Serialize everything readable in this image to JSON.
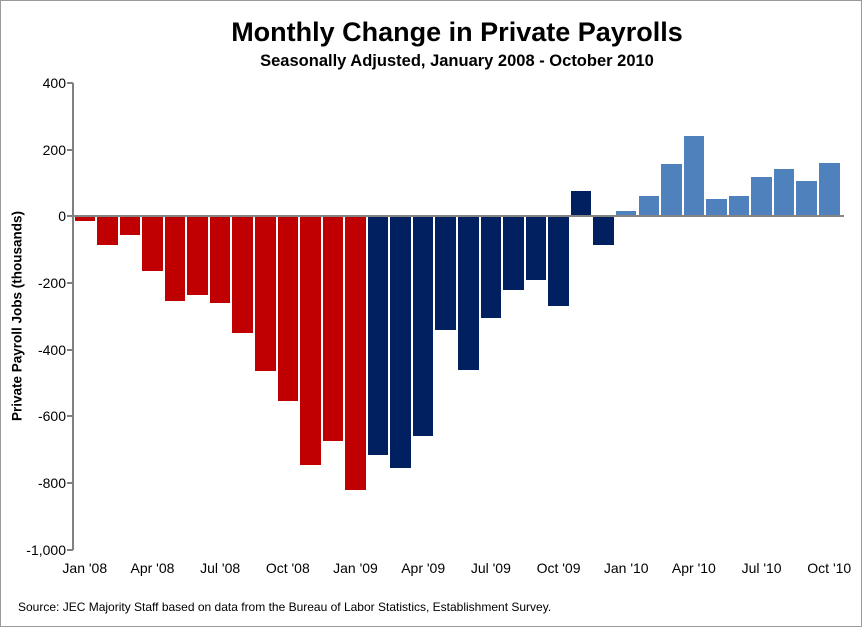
{
  "chart_data": {
    "type": "bar",
    "title": "Monthly Change in Private Payrolls",
    "subtitle": "Seasonally Adjusted, January 2008 - October 2010",
    "ylabel": "Private Payroll Jobs (thousands)",
    "ylim": [
      -1000,
      400
    ],
    "ytick_interval": 200,
    "grid": false,
    "legend": "none",
    "yticks": [
      {
        "value": 400,
        "label": "400"
      },
      {
        "value": 200,
        "label": "200"
      },
      {
        "value": 0,
        "label": "0"
      },
      {
        "value": -200,
        "label": "-200"
      },
      {
        "value": -400,
        "label": "-400"
      },
      {
        "value": -600,
        "label": "-600"
      },
      {
        "value": -800,
        "label": "-800"
      },
      {
        "value": -1000,
        "label": "-1,000"
      }
    ],
    "xticks": [
      {
        "index": 0,
        "label": "Jan '08"
      },
      {
        "index": 3,
        "label": "Apr '08"
      },
      {
        "index": 6,
        "label": "Jul '08"
      },
      {
        "index": 9,
        "label": "Oct '08"
      },
      {
        "index": 12,
        "label": "Jan '09"
      },
      {
        "index": 15,
        "label": "Apr '09"
      },
      {
        "index": 18,
        "label": "Jul '09"
      },
      {
        "index": 21,
        "label": "Oct '09"
      },
      {
        "index": 24,
        "label": "Jan '10"
      },
      {
        "index": 27,
        "label": "Apr '10"
      },
      {
        "index": 30,
        "label": "Jul '10"
      },
      {
        "index": 33,
        "label": "Oct '10"
      }
    ],
    "bars": [
      {
        "month": "Jan '08",
        "value": -15,
        "color_key": "red"
      },
      {
        "month": "Feb '08",
        "value": -85,
        "color_key": "red"
      },
      {
        "month": "Mar '08",
        "value": -55,
        "color_key": "red"
      },
      {
        "month": "Apr '08",
        "value": -165,
        "color_key": "red"
      },
      {
        "month": "May '08",
        "value": -255,
        "color_key": "red"
      },
      {
        "month": "Jun '08",
        "value": -235,
        "color_key": "red"
      },
      {
        "month": "Jul '08",
        "value": -260,
        "color_key": "red"
      },
      {
        "month": "Aug '08",
        "value": -350,
        "color_key": "red"
      },
      {
        "month": "Sep '08",
        "value": -465,
        "color_key": "red"
      },
      {
        "month": "Oct '08",
        "value": -555,
        "color_key": "red"
      },
      {
        "month": "Nov '08",
        "value": -745,
        "color_key": "red"
      },
      {
        "month": "Dec '08",
        "value": -675,
        "color_key": "red"
      },
      {
        "month": "Jan '09",
        "value": -820,
        "color_key": "red"
      },
      {
        "month": "Feb '09",
        "value": -715,
        "color_key": "navy"
      },
      {
        "month": "Mar '09",
        "value": -755,
        "color_key": "navy"
      },
      {
        "month": "Apr '09",
        "value": -660,
        "color_key": "navy"
      },
      {
        "month": "May '09",
        "value": -340,
        "color_key": "navy"
      },
      {
        "month": "Jun '09",
        "value": -460,
        "color_key": "navy"
      },
      {
        "month": "Jul '09",
        "value": -305,
        "color_key": "navy"
      },
      {
        "month": "Aug '09",
        "value": -220,
        "color_key": "navy"
      },
      {
        "month": "Sep '09",
        "value": -190,
        "color_key": "navy"
      },
      {
        "month": "Oct '09",
        "value": -270,
        "color_key": "navy"
      },
      {
        "month": "Nov '09",
        "value": 75,
        "color_key": "navy"
      },
      {
        "month": "Dec '09",
        "value": -85,
        "color_key": "navy"
      },
      {
        "month": "Jan '10",
        "value": 16,
        "color_key": "lightblue"
      },
      {
        "month": "Feb '10",
        "value": 62,
        "color_key": "lightblue"
      },
      {
        "month": "Mar '10",
        "value": 158,
        "color_key": "lightblue"
      },
      {
        "month": "Apr '10",
        "value": 241,
        "color_key": "lightblue"
      },
      {
        "month": "May '10",
        "value": 51,
        "color_key": "lightblue"
      },
      {
        "month": "Jun '10",
        "value": 61,
        "color_key": "lightblue"
      },
      {
        "month": "Jul '10",
        "value": 117,
        "color_key": "lightblue"
      },
      {
        "month": "Aug '10",
        "value": 143,
        "color_key": "lightblue"
      },
      {
        "month": "Sep '10",
        "value": 107,
        "color_key": "lightblue"
      },
      {
        "month": "Oct '10",
        "value": 159,
        "color_key": "lightblue"
      }
    ],
    "colors": {
      "red": "#C00000",
      "navy": "#002060",
      "lightblue": "#4F81BD",
      "axis": "#808080"
    },
    "source": "Source: JEC Majority Staff based on data from the Bureau of Labor Statistics, Establishment Survey."
  }
}
